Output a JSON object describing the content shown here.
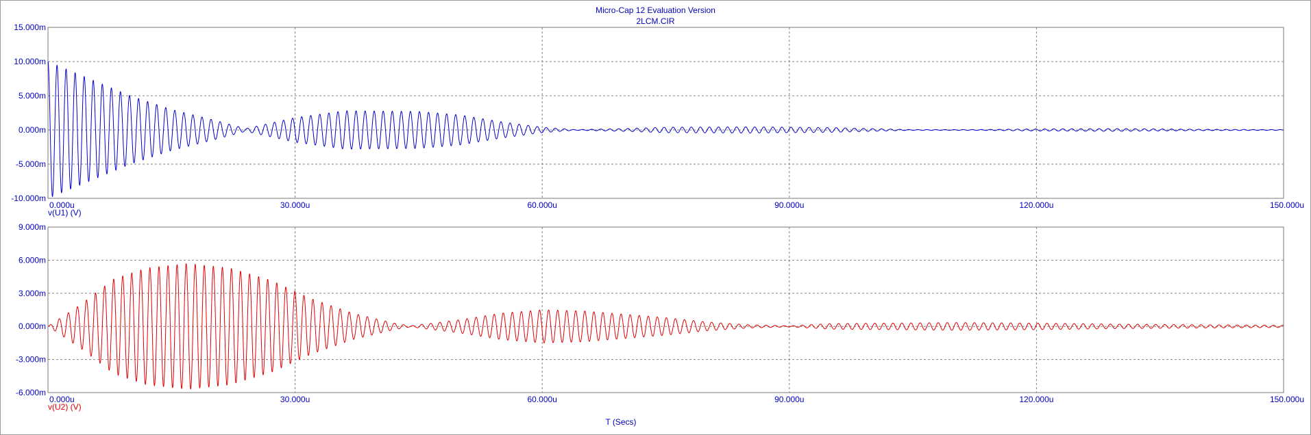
{
  "title": "Micro-Cap 12 Evaluation Version",
  "subtitle": "2LCM.CIR",
  "xlabel": "T (Secs)",
  "colors": {
    "frame_text": "#0000b4",
    "grid": "#808080",
    "series1": "#0000c8",
    "series2": "#e00000"
  },
  "chart_data": [
    {
      "type": "line",
      "series": [
        {
          "name": "v(U1) (V)",
          "color": "#0000c8"
        }
      ],
      "x_range": [
        0,
        150
      ],
      "x_unit": "u",
      "ylim": [
        -10,
        15
      ],
      "y_unit": "m",
      "x_ticks": [
        "0.000u",
        "30.000u",
        "60.000u",
        "90.000u",
        "120.000u",
        "150.000u"
      ],
      "y_ticks": [
        "15.000m",
        "10.000m",
        "5.000m",
        "0.000m",
        "-5.000m",
        "-10.000m"
      ],
      "grid": true,
      "oscillation_period_us": 1.1,
      "envelope": [
        [
          0,
          10
        ],
        [
          5,
          7.5
        ],
        [
          10,
          5
        ],
        [
          15,
          3
        ],
        [
          20,
          1.5
        ],
        [
          24,
          0.2
        ],
        [
          30,
          1.8
        ],
        [
          36,
          2.8
        ],
        [
          45,
          2.7
        ],
        [
          50,
          2.2
        ],
        [
          55,
          1.2
        ],
        [
          60,
          0.4
        ],
        [
          64,
          0.05
        ],
        [
          70,
          0.2
        ],
        [
          75,
          0.4
        ],
        [
          85,
          0.45
        ],
        [
          95,
          0.35
        ],
        [
          100,
          0.2
        ],
        [
          105,
          0.05
        ],
        [
          112,
          0.05
        ],
        [
          120,
          0.15
        ],
        [
          130,
          0.2
        ],
        [
          140,
          0.1
        ],
        [
          150,
          0.05
        ]
      ]
    },
    {
      "type": "line",
      "series": [
        {
          "name": "v(U2) (V)",
          "color": "#e00000"
        }
      ],
      "x_range": [
        0,
        150
      ],
      "x_unit": "u",
      "ylim": [
        -6,
        9
      ],
      "y_unit": "m",
      "x_ticks": [
        "0.000u",
        "30.000u",
        "60.000u",
        "90.000u",
        "120.000u",
        "150.000u"
      ],
      "y_ticks": [
        "9.000m",
        "6.000m",
        "3.000m",
        "0.000m",
        "-3.000m",
        "-6.000m"
      ],
      "grid": true,
      "oscillation_period_us": 1.1,
      "envelope": [
        [
          0,
          0
        ],
        [
          4,
          2
        ],
        [
          8,
          4.3
        ],
        [
          12,
          5.3
        ],
        [
          17,
          5.7
        ],
        [
          22,
          5.3
        ],
        [
          27,
          4.2
        ],
        [
          32,
          2.5
        ],
        [
          37,
          1.2
        ],
        [
          42,
          0.3
        ],
        [
          44,
          0.05
        ],
        [
          50,
          0.6
        ],
        [
          55,
          1.2
        ],
        [
          60,
          1.5
        ],
        [
          65,
          1.4
        ],
        [
          70,
          1.1
        ],
        [
          75,
          0.8
        ],
        [
          80,
          0.4
        ],
        [
          85,
          0.15
        ],
        [
          90,
          0.05
        ],
        [
          95,
          0.25
        ],
        [
          110,
          0.35
        ],
        [
          120,
          0.3
        ],
        [
          130,
          0.2
        ],
        [
          140,
          0.15
        ],
        [
          150,
          0.1
        ]
      ]
    }
  ]
}
